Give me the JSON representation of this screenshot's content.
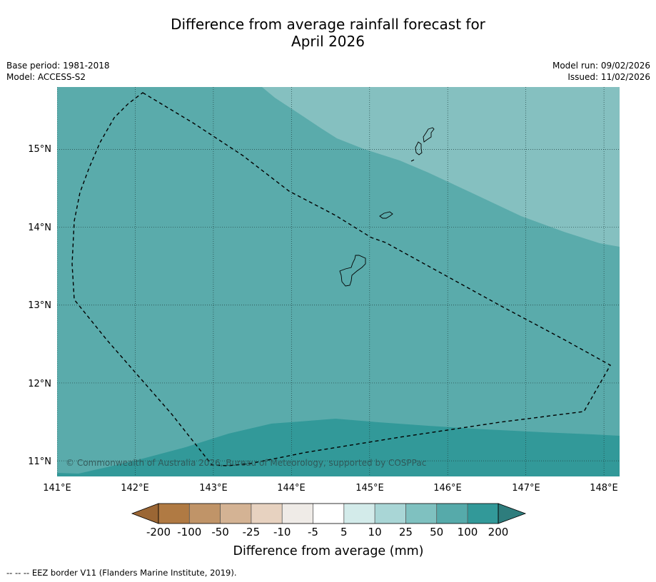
{
  "title": {
    "line1": "Difference from average rainfall forecast for",
    "line2": "April 2026"
  },
  "meta": {
    "base_period": "Base period: 1981-2018",
    "model": "Model: ACCESS-S2",
    "model_run": "Model run: 09/02/2026",
    "issued": "Issued: 11/02/2026"
  },
  "map": {
    "lon_range": [
      141.0,
      148.2
    ],
    "lat_range": [
      10.8,
      15.8
    ],
    "lon_ticks": [
      "141°E",
      "142°E",
      "143°E",
      "144°E",
      "145°E",
      "146°E",
      "147°E",
      "148°E"
    ],
    "lat_ticks": [
      "15°N",
      "14°N",
      "13°N",
      "12°N",
      "11°N"
    ],
    "copyright": "© Commonwealth of Australia 2026, Bureau of Meteorology, supported by COSPPac",
    "base_color": "#5aabab",
    "upper_zone_color": "#85c0c0",
    "lower_zone_color": "#329999",
    "gridlines": true
  },
  "colorbar": {
    "tick_labels": [
      "-200",
      "-100",
      "-50",
      "-25",
      "-10",
      "-5",
      "5",
      "10",
      "25",
      "50",
      "100",
      "200"
    ],
    "colors": [
      "#9b6634",
      "#b07a43",
      "#c09468",
      "#d4b394",
      "#e7d2c0",
      "#efebe7",
      "#ffffff",
      "#d3ebea",
      "#a9d6d6",
      "#7fc1c0",
      "#56aaaa",
      "#329999",
      "#2e7d7d"
    ],
    "label": "Difference from average (mm)"
  },
  "footer": {
    "legend_text": "--  --  -- EEZ border V11 (Flanders Marine Institute, 2019)."
  }
}
